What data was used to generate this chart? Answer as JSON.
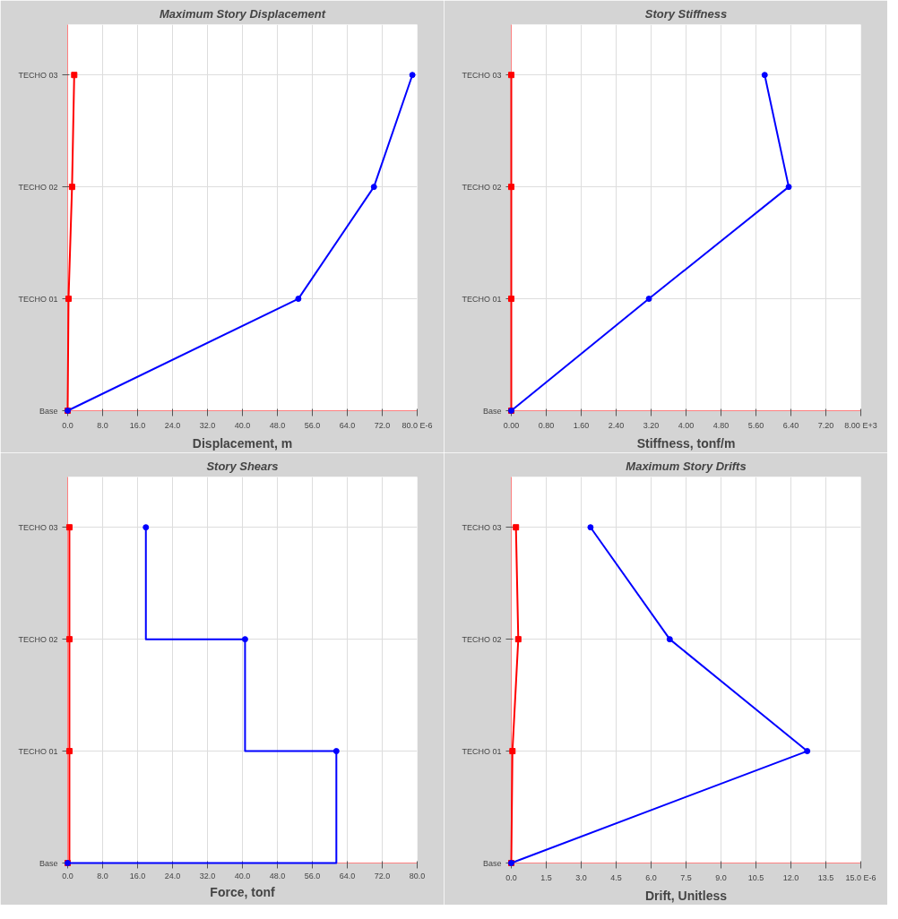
{
  "chart_data": [
    {
      "type": "line",
      "orientation": "horizontal",
      "title": "Maximum Story Displacement",
      "xlabel": "Displacement, m",
      "xlim": [
        0,
        80
      ],
      "xticks": [
        {
          "value": 0,
          "label": "0.0"
        },
        {
          "value": 8,
          "label": "8.0"
        },
        {
          "value": 16,
          "label": "16.0"
        },
        {
          "value": 24,
          "label": "24.0"
        },
        {
          "value": 32,
          "label": "32.0"
        },
        {
          "value": 40,
          "label": "40.0"
        },
        {
          "value": 48,
          "label": "48.0"
        },
        {
          "value": 56,
          "label": "56.0"
        },
        {
          "value": 64,
          "label": "64.0"
        },
        {
          "value": 72,
          "label": "72.0"
        },
        {
          "value": 80,
          "label": "80.0 E-6"
        }
      ],
      "categories": [
        "TECHO 03",
        "TECHO 02",
        "TECHO 01",
        "Base"
      ],
      "grid": true,
      "series": [
        {
          "color": "#ff0000",
          "marker": "square",
          "values": [
            1.5,
            1.0,
            0.2,
            0
          ]
        },
        {
          "color": "#0000ff",
          "marker": "circle",
          "values": [
            78.9,
            70.1,
            52.8,
            0
          ]
        }
      ]
    },
    {
      "type": "line",
      "orientation": "horizontal",
      "title": "Story Stiffness",
      "xlabel": "Stiffness, tonf/m",
      "xlim": [
        0,
        8
      ],
      "xticks": [
        {
          "value": 0,
          "label": "0.00"
        },
        {
          "value": 0.8,
          "label": "0.80"
        },
        {
          "value": 1.6,
          "label": "1.60"
        },
        {
          "value": 2.4,
          "label": "2.40"
        },
        {
          "value": 3.2,
          "label": "3.20"
        },
        {
          "value": 4,
          "label": "4.00"
        },
        {
          "value": 4.8,
          "label": "4.80"
        },
        {
          "value": 5.6,
          "label": "5.60"
        },
        {
          "value": 6.4,
          "label": "6.40"
        },
        {
          "value": 7.2,
          "label": "7.20"
        },
        {
          "value": 8,
          "label": "8.00 E+3"
        }
      ],
      "categories": [
        "TECHO 03",
        "TECHO 02",
        "TECHO 01",
        "Base"
      ],
      "grid": true,
      "series": [
        {
          "color": "#ff0000",
          "marker": "square",
          "values": [
            0,
            0,
            0,
            0
          ]
        },
        {
          "color": "#0000ff",
          "marker": "circle",
          "values": [
            5.8,
            6.35,
            3.15,
            0
          ]
        }
      ]
    },
    {
      "type": "step",
      "orientation": "horizontal",
      "title": "Story Shears",
      "xlabel": "Force, tonf",
      "xlim": [
        0,
        80
      ],
      "xticks": [
        {
          "value": 0,
          "label": "0.0"
        },
        {
          "value": 8,
          "label": "8.0"
        },
        {
          "value": 16,
          "label": "16.0"
        },
        {
          "value": 24,
          "label": "24.0"
        },
        {
          "value": 32,
          "label": "32.0"
        },
        {
          "value": 40,
          "label": "40.0"
        },
        {
          "value": 48,
          "label": "48.0"
        },
        {
          "value": 56,
          "label": "56.0"
        },
        {
          "value": 64,
          "label": "64.0"
        },
        {
          "value": 72,
          "label": "72.0"
        },
        {
          "value": 80,
          "label": "80.0"
        }
      ],
      "categories": [
        "TECHO 03",
        "TECHO 02",
        "TECHO 01",
        "Base"
      ],
      "grid": true,
      "series": [
        {
          "color": "#ff0000",
          "marker": "square",
          "values": [
            0.4,
            0.4,
            0.4,
            0
          ]
        },
        {
          "color": "#0000ff",
          "marker": "circle",
          "values": [
            17.9,
            40.6,
            61.5,
            0
          ]
        }
      ]
    },
    {
      "type": "line",
      "orientation": "horizontal",
      "title": "Maximum Story Drifts",
      "xlabel": "Drift, Unitless",
      "xlim": [
        0,
        15
      ],
      "xticks": [
        {
          "value": 0,
          "label": "0.0"
        },
        {
          "value": 1.5,
          "label": "1.5"
        },
        {
          "value": 3,
          "label": "3.0"
        },
        {
          "value": 4.5,
          "label": "4.5"
        },
        {
          "value": 6,
          "label": "6.0"
        },
        {
          "value": 7.5,
          "label": "7.5"
        },
        {
          "value": 9,
          "label": "9.0"
        },
        {
          "value": 10.5,
          "label": "10.5"
        },
        {
          "value": 12,
          "label": "12.0"
        },
        {
          "value": 13.5,
          "label": "13.5"
        },
        {
          "value": 15,
          "label": "15.0 E-6"
        }
      ],
      "categories": [
        "TECHO 03",
        "TECHO 02",
        "TECHO 01",
        "Base"
      ],
      "grid": true,
      "series": [
        {
          "color": "#ff0000",
          "marker": "square",
          "values": [
            0.2,
            0.3,
            0.05,
            0
          ]
        },
        {
          "color": "#0000ff",
          "marker": "circle",
          "values": [
            3.4,
            6.8,
            12.7,
            0
          ]
        }
      ]
    }
  ]
}
